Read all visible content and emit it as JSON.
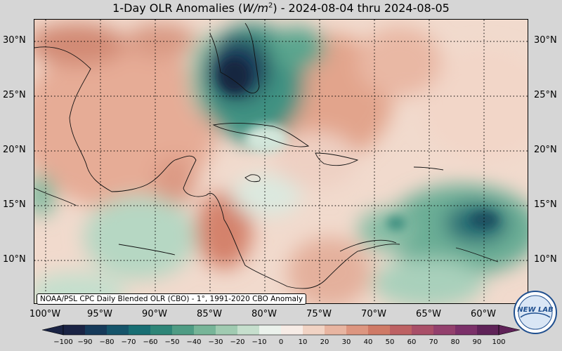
{
  "title": {
    "prefix": "1-Day OLR Anomalies (",
    "unit_base": "W/m",
    "unit_exp": "2",
    "suffix": ") - 2024-08-04 thru 2024-08-05"
  },
  "map": {
    "lat_ticks": [
      "30°N",
      "25°N",
      "20°N",
      "15°N",
      "10°N"
    ],
    "lon_ticks": [
      "100°W",
      "95°W",
      "90°W",
      "85°W",
      "80°W",
      "75°W",
      "70°W",
      "65°W",
      "60°W"
    ],
    "gridlines": "dotted",
    "background_color": "#f4e4da"
  },
  "credit": "NOAA/PSL CPC Daily Blended OLR (CBO) - 1°, 1991-2020 CBO Anomaly",
  "colorbar": {
    "ticks": [
      "−100",
      "−90",
      "−80",
      "−70",
      "−60",
      "−50",
      "−40",
      "−30",
      "−20",
      "−10",
      "0",
      "10",
      "20",
      "30",
      "40",
      "50",
      "60",
      "70",
      "80",
      "90",
      "100"
    ],
    "colors": [
      "#1a2344",
      "#163a5a",
      "#15546a",
      "#186e73",
      "#2e8577",
      "#4f9c84",
      "#77b598",
      "#a0cbb1",
      "#c6dfcd",
      "#ebf2ec",
      "#f7ece6",
      "#f1d3c4",
      "#e8b5a1",
      "#dd9680",
      "#cf7a66",
      "#bd6163",
      "#a94f68",
      "#93406d",
      "#7b3069",
      "#5f2258"
    ]
  },
  "logo": {
    "text": "NEW LAB"
  }
}
